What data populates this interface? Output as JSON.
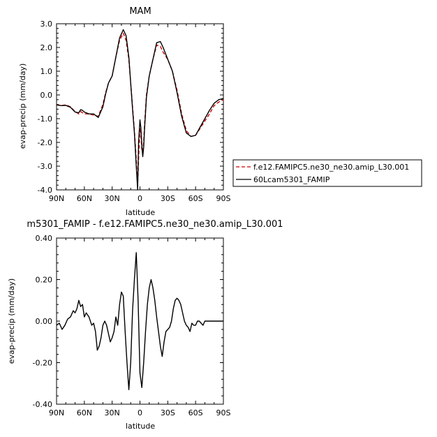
{
  "chart_data": [
    {
      "type": "line",
      "title": "MAM",
      "xlabel": "latitude",
      "ylabel": "evap-precip (mm/day)",
      "xlim": [
        90,
        -90
      ],
      "ylim": [
        -4.0,
        3.0
      ],
      "x_tick_values": [
        90,
        60,
        30,
        0,
        -30,
        -60,
        -90
      ],
      "x_tick_labels": [
        "90N",
        "60N",
        "30N",
        "0",
        "30S",
        "60S",
        "90S"
      ],
      "y_tick_values": [
        3.0,
        2.0,
        1.0,
        0.0,
        -1.0,
        -2.0,
        -3.0,
        -4.0
      ],
      "y_tick_labels": [
        "3.0",
        "2.0",
        "1.0",
        "0.0",
        "-1.0",
        "-2.0",
        "-3.0",
        "-4.0"
      ],
      "grid": false,
      "legend_placement": "right-outside",
      "series": [
        {
          "name": "f.e12.FAMIPC5.ne30_ne30.amip_L30.001",
          "color": "#cc0000",
          "dash": "dashed",
          "x": [
            90,
            85,
            80,
            75,
            70,
            66,
            64,
            62,
            60,
            55,
            50,
            45,
            40,
            37,
            34,
            30,
            26,
            22,
            18,
            15,
            12,
            10,
            8,
            6,
            4,
            2.5,
            1.5,
            0,
            -1,
            -2,
            -3,
            -4,
            -5,
            -7,
            -10,
            -14,
            -18,
            -22,
            -25,
            -30,
            -35,
            -40,
            -45,
            -50,
            -55,
            -60,
            -65,
            -70,
            -75,
            -80,
            -85,
            -90
          ],
          "y": [
            -0.4,
            -0.45,
            -0.42,
            -0.5,
            -0.7,
            -0.8,
            -0.7,
            -0.75,
            -0.8,
            -0.8,
            -0.85,
            -0.9,
            -0.4,
            0.1,
            0.5,
            0.8,
            1.6,
            2.3,
            2.6,
            2.3,
            1.5,
            0.5,
            -0.5,
            -1.5,
            -2.7,
            -3.8,
            -2.7,
            -1.4,
            -1.7,
            -2.3,
            -2.4,
            -2.0,
            -1.2,
            0.0,
            0.8,
            1.5,
            2.1,
            2.05,
            1.8,
            1.5,
            1.0,
            0.2,
            -0.8,
            -1.5,
            -1.75,
            -1.7,
            -1.4,
            -1.1,
            -0.8,
            -0.45,
            -0.3,
            -0.2
          ]
        },
        {
          "name": "60Lcam5301_FAMIP",
          "color": "#000000",
          "dash": "solid",
          "x": [
            90,
            85,
            80,
            75,
            70,
            66,
            64,
            62,
            60,
            55,
            50,
            45,
            40,
            37,
            34,
            30,
            26,
            22,
            18,
            15,
            12,
            10,
            8,
            6,
            4,
            2.5,
            1.5,
            0,
            -1,
            -2,
            -3,
            -4,
            -5,
            -7,
            -10,
            -14,
            -18,
            -22,
            -25,
            -30,
            -35,
            -40,
            -45,
            -50,
            -55,
            -60,
            -65,
            -70,
            -75,
            -80,
            -85,
            -90
          ],
          "y": [
            -0.42,
            -0.45,
            -0.44,
            -0.52,
            -0.72,
            -0.75,
            -0.62,
            -0.65,
            -0.72,
            -0.8,
            -0.8,
            -0.95,
            -0.5,
            0.05,
            0.5,
            0.8,
            1.6,
            2.4,
            2.75,
            2.5,
            1.6,
            0.5,
            -0.6,
            -1.6,
            -3.0,
            -4.0,
            -2.0,
            -1.05,
            -1.4,
            -2.1,
            -2.6,
            -2.2,
            -1.4,
            -0.1,
            0.8,
            1.5,
            2.2,
            2.25,
            2.0,
            1.5,
            1.0,
            0.1,
            -0.9,
            -1.6,
            -1.75,
            -1.7,
            -1.35,
            -1.0,
            -0.65,
            -0.35,
            -0.2,
            -0.15
          ]
        }
      ]
    },
    {
      "type": "line",
      "title": "m5301_FAMIP - f.e12.FAMIPC5.ne30_ne30.amip_L30.001",
      "xlabel": "latitude",
      "ylabel": "evap-precip (mm/day)",
      "xlim": [
        90,
        -90
      ],
      "ylim": [
        -0.4,
        0.4
      ],
      "x_tick_values": [
        90,
        60,
        30,
        0,
        -30,
        -60,
        -90
      ],
      "x_tick_labels": [
        "90N",
        "60N",
        "30N",
        "0",
        "30S",
        "60S",
        "90S"
      ],
      "y_tick_values": [
        0.4,
        0.2,
        0.0,
        -0.2,
        -0.4
      ],
      "y_tick_labels": [
        "0.40",
        "0.20",
        "0.00",
        "-0.20",
        "-0.40"
      ],
      "grid": false,
      "series": [
        {
          "color": "#000000",
          "dash": "solid",
          "x": [
            90,
            87,
            84,
            81,
            78,
            75,
            72,
            70,
            68,
            66,
            64,
            62,
            60,
            58,
            55,
            52,
            50,
            48,
            46,
            44,
            42,
            40,
            38,
            36,
            34,
            32,
            30,
            28,
            26,
            24,
            22,
            20,
            18,
            16,
            14,
            12,
            10,
            8,
            6,
            4,
            2,
            0,
            -2,
            -4,
            -6,
            -8,
            -10,
            -12,
            -14,
            -16,
            -18,
            -20,
            -22,
            -24,
            -26,
            -28,
            -30,
            -32,
            -34,
            -36,
            -38,
            -40,
            -42,
            -44,
            -46,
            -48,
            -50,
            -52,
            -54,
            -56,
            -58,
            -60,
            -62,
            -64,
            -66,
            -68,
            -70,
            -72,
            -74,
            -76,
            -78,
            -80,
            -82,
            -84,
            -86,
            -88,
            -90
          ],
          "y": [
            -0.02,
            -0.01,
            -0.04,
            -0.02,
            0.01,
            0.02,
            0.05,
            0.04,
            0.06,
            0.1,
            0.07,
            0.08,
            0.02,
            0.04,
            0.02,
            -0.02,
            -0.01,
            -0.05,
            -0.14,
            -0.12,
            -0.08,
            -0.02,
            0.0,
            -0.02,
            -0.06,
            -0.1,
            -0.08,
            -0.05,
            0.02,
            -0.02,
            0.08,
            0.14,
            0.12,
            -0.05,
            -0.2,
            -0.33,
            -0.2,
            0.05,
            0.2,
            0.33,
            0.1,
            -0.25,
            -0.32,
            -0.2,
            -0.05,
            0.08,
            0.16,
            0.2,
            0.16,
            0.1,
            0.02,
            -0.05,
            -0.12,
            -0.17,
            -0.1,
            -0.05,
            -0.04,
            -0.03,
            0.0,
            0.06,
            0.1,
            0.11,
            0.1,
            0.08,
            0.04,
            0.0,
            -0.02,
            -0.03,
            -0.05,
            -0.01,
            -0.02,
            -0.02,
            0.0,
            0.0,
            -0.01,
            -0.02,
            0.0,
            0.0,
            0.0,
            0.0,
            0.0,
            0.0,
            0.0,
            0.0,
            0.0,
            0.0,
            0.0
          ]
        }
      ]
    }
  ]
}
